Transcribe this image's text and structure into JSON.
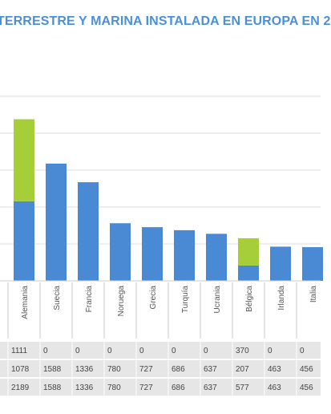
{
  "chart_data": {
    "type": "bar",
    "stacked": true,
    "title": "TERRESTRE Y MARINA INSTALADA EN EUROPA EN 2",
    "categories": [
      "Alemania",
      "Suecia",
      "Francia",
      "Noruega",
      "Grecia",
      "Turquía",
      "Ucrania",
      "Bélgica",
      "Irlanda",
      "Italia"
    ],
    "series": [
      {
        "color": "#4a8ad4",
        "values": [
          1078,
          1588,
          1336,
          780,
          727,
          686,
          637,
          207,
          463,
          456
        ]
      },
      {
        "color": "#a6ce39",
        "values": [
          1111,
          0,
          0,
          0,
          0,
          0,
          0,
          370,
          0,
          0
        ]
      }
    ],
    "totals": [
      2189,
      1588,
      1336,
      780,
      727,
      686,
      637,
      577,
      463,
      456
    ],
    "table_rows": [
      {
        "series": 1,
        "values": [
          "1111",
          "0",
          "0",
          "0",
          "0",
          "0",
          "0",
          "370",
          "0",
          "0"
        ]
      },
      {
        "series": 0,
        "values": [
          "1078",
          "1588",
          "1336",
          "780",
          "727",
          "686",
          "637",
          "207",
          "463",
          "456"
        ]
      },
      {
        "series": -1,
        "values": [
          "2189",
          "1588",
          "1336",
          "780",
          "727",
          "686",
          "637",
          "577",
          "463",
          "456"
        ]
      }
    ],
    "ylim": [
      0,
      2500
    ],
    "grid": true
  }
}
